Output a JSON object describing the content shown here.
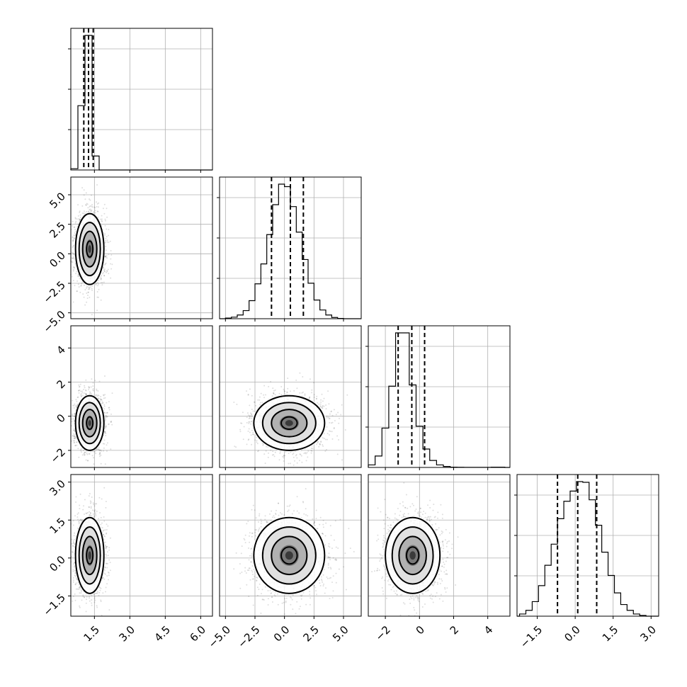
{
  "chart_data": {
    "type": "corner",
    "grid": true,
    "contour_levels": 4,
    "parameters": [
      {
        "range": [
          0.5,
          6.5
        ],
        "x_ticks": [
          "1.5",
          "3.0",
          "4.5",
          "6.0"
        ],
        "y_ticks": [],
        "bins": [
          0.5,
          0.8,
          1.1,
          1.4,
          1.7,
          2.0
        ],
        "counts": [
          30,
          1520,
          3180,
          330,
          0
        ],
        "quantiles": [
          1.05,
          1.25,
          1.45
        ],
        "center": 1.3,
        "spread": 0.3
      },
      {
        "range": [
          -5.5,
          6.5
        ],
        "x_ticks": [
          "−5.0",
          "−2.5",
          "0.0",
          "2.5",
          "5.0"
        ],
        "y_ticks": [
          "5.0",
          "2.5",
          "0.0",
          "−2.5",
          "−5.0"
        ],
        "bins": [
          -5.0,
          -4.5,
          -4.0,
          -3.5,
          -3.0,
          -2.5,
          -2.0,
          -1.5,
          -1.0,
          -0.5,
          0.0,
          0.5,
          1.0,
          1.5,
          2.0,
          2.5,
          3.0,
          3.5,
          4.0,
          4.5,
          5.0
        ],
        "counts": [
          10,
          25,
          60,
          130,
          290,
          560,
          880,
          1350,
          1830,
          2160,
          2120,
          1800,
          1390,
          950,
          570,
          300,
          140,
          60,
          20,
          5
        ],
        "quantiles": [
          -1.1,
          0.5,
          1.6
        ],
        "center": 0.4,
        "spread": 1.5
      },
      {
        "range": [
          -3.0,
          5.3
        ],
        "x_ticks": [
          "−2",
          "0",
          "2",
          "4"
        ],
        "y_ticks": [
          "4",
          "2",
          "0",
          "−2"
        ],
        "bins": [
          -3.0,
          -2.6,
          -2.2,
          -1.8,
          -1.4,
          -1.0,
          -0.6,
          -0.2,
          0.2,
          0.6,
          1.0,
          1.4,
          1.8,
          2.2,
          2.6,
          3.0,
          3.4,
          3.8,
          4.2,
          4.6,
          5.0
        ],
        "counts": [
          40,
          180,
          620,
          1280,
          2120,
          2120,
          1300,
          650,
          290,
          110,
          40,
          15,
          5,
          3,
          2,
          1,
          1,
          1,
          5,
          5
        ],
        "quantiles": [
          -1.25,
          -0.45,
          0.3
        ],
        "center": -0.4,
        "spread": 0.8
      },
      {
        "range": [
          -2.3,
          3.3
        ],
        "x_ticks": [
          "−1.5",
          "0.0",
          "1.5",
          "3.0"
        ],
        "y_ticks": [
          "3.0",
          "1.5",
          "0.0",
          "−1.5"
        ],
        "bins": [
          -2.2,
          -1.95,
          -1.7,
          -1.45,
          -1.2,
          -0.95,
          -0.7,
          -0.45,
          -0.2,
          0.05,
          0.3,
          0.55,
          0.8,
          1.05,
          1.3,
          1.55,
          1.8,
          2.05,
          2.3,
          2.55,
          2.8
        ],
        "counts": [
          30,
          80,
          200,
          420,
          700,
          990,
          1340,
          1580,
          1720,
          1850,
          1840,
          1600,
          1250,
          880,
          560,
          320,
          160,
          80,
          30,
          10
        ],
        "quantiles": [
          -0.7,
          0.1,
          0.85
        ],
        "center": 0.1,
        "spread": 0.75
      }
    ]
  }
}
